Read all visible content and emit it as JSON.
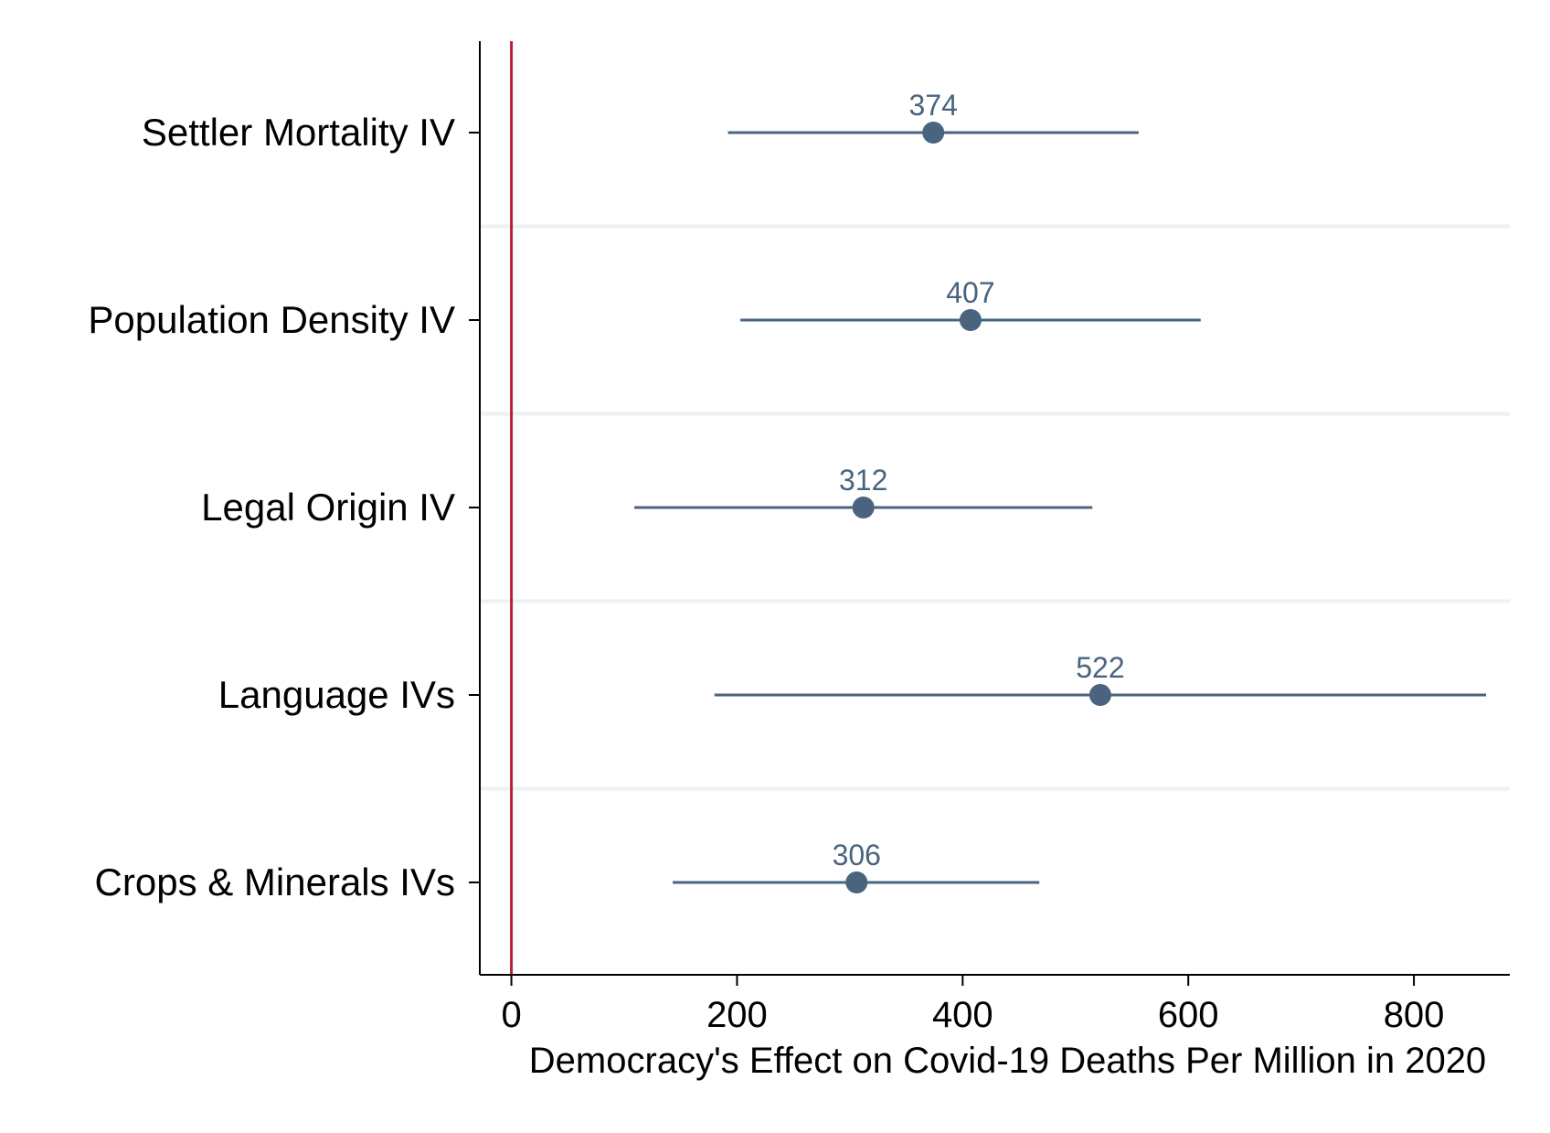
{
  "chart_data": {
    "type": "scatter",
    "subtype": "coefficient-plot",
    "title": "",
    "xlabel": "Democracy's Effect on Covid-19 Deaths Per Million in 2020",
    "ylabel": "",
    "xlim": [
      -28,
      885
    ],
    "xticks": [
      0,
      200,
      400,
      600,
      800
    ],
    "reference_line": {
      "x": 0,
      "color": "#b22432"
    },
    "grid": {
      "horizontal_separators": true,
      "vertical": false
    },
    "colors": {
      "marker": "#4a6480",
      "line": "#4a6480",
      "grid": "#edf1f1",
      "axis": "#000000"
    },
    "categories": [
      "Settler Mortality IV",
      "Population Density IV",
      "Legal Origin IV",
      "Language IVs",
      "Crops & Minerals IVs"
    ],
    "series": [
      {
        "values": [
          374,
          407,
          312,
          522,
          306
        ],
        "ci_low": [
          192,
          203,
          109,
          180,
          143
        ],
        "ci_high": [
          556,
          611,
          515,
          864,
          468
        ],
        "data_labels": [
          "374",
          "407",
          "312",
          "522",
          "306"
        ]
      }
    ]
  }
}
